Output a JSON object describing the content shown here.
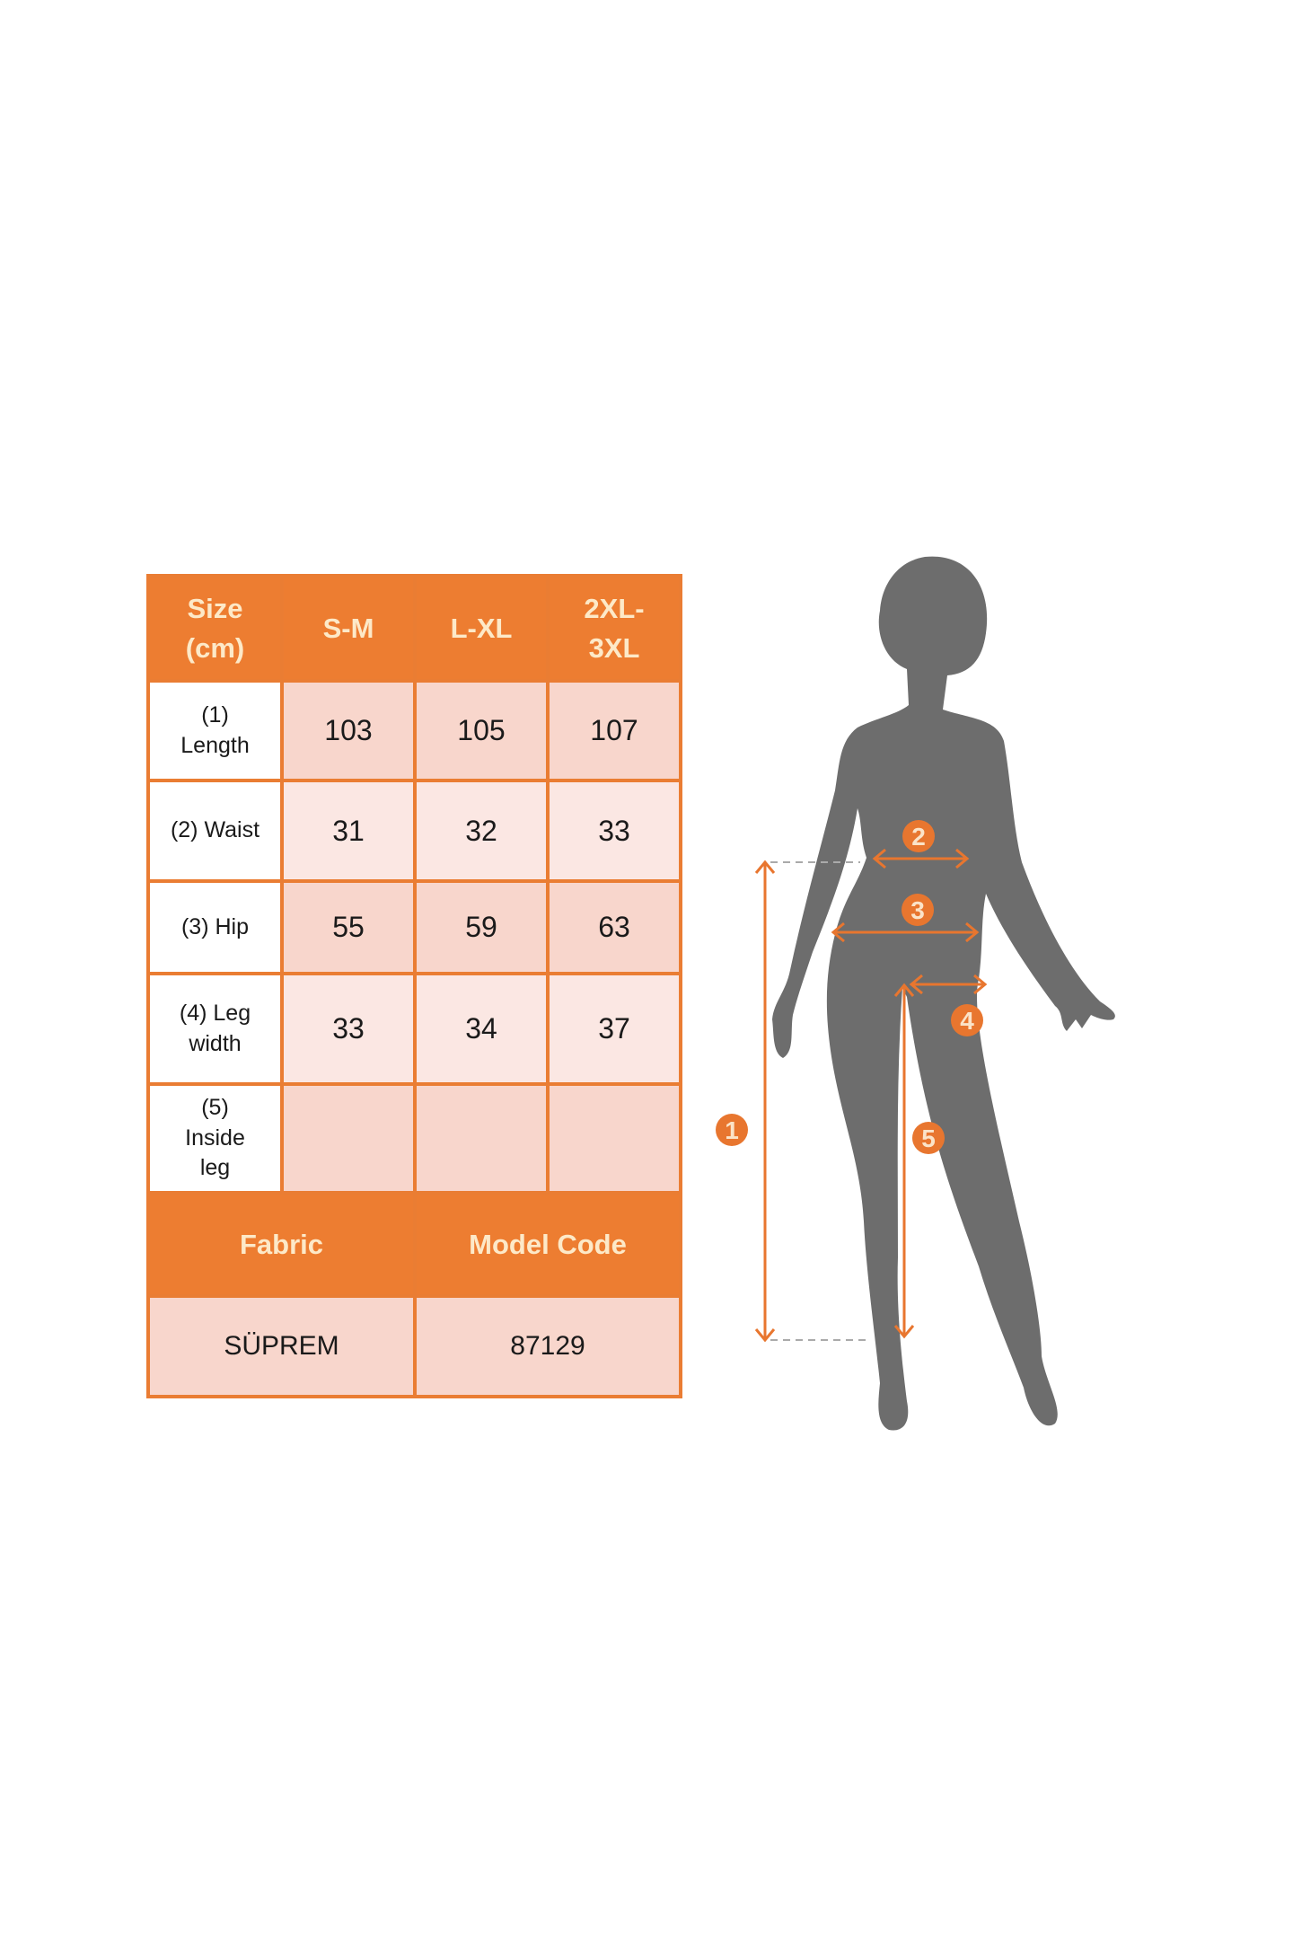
{
  "colors": {
    "header": "#ed7d31",
    "row_dark": "#f8d6cc",
    "row_light": "#fbe7e3",
    "border": "#ea7d33",
    "silhouette": "#6d6d6d",
    "marker": "#e8762f"
  },
  "table": {
    "header": [
      "Size (cm)",
      "S-M",
      "L-XL",
      "2XL- 3XL"
    ],
    "header_lines": [
      [
        "Size",
        "(cm)"
      ],
      [
        "S-M"
      ],
      [
        "L-XL"
      ],
      [
        "2XL-",
        "3XL"
      ]
    ],
    "rows": [
      {
        "label_lines": [
          "(1)",
          "Length"
        ],
        "values": [
          "103",
          "105",
          "107"
        ]
      },
      {
        "label_lines": [
          "(2) Waist"
        ],
        "values": [
          "31",
          "32",
          "33"
        ]
      },
      {
        "label_lines": [
          "(3) Hip"
        ],
        "values": [
          "55",
          "59",
          "63"
        ]
      },
      {
        "label_lines": [
          "(4) Leg",
          "width"
        ],
        "values": [
          "33",
          "34",
          "37"
        ]
      },
      {
        "label_lines": [
          "(5)",
          "Inside",
          "leg"
        ],
        "values": [
          "",
          "",
          ""
        ]
      }
    ],
    "footer_header": [
      "Fabric",
      "Model Code"
    ],
    "footer_values": [
      "SÜPREM",
      "87129"
    ]
  },
  "figure": {
    "markers": [
      "1",
      "2",
      "3",
      "4",
      "5"
    ],
    "icon": "female-silhouette-icon"
  }
}
